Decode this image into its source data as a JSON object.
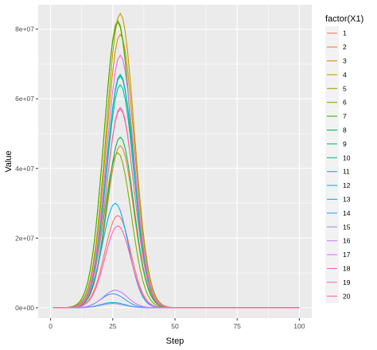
{
  "chart_data": {
    "type": "line",
    "xlabel": "Step",
    "ylabel": "Value",
    "xlim": [
      -5,
      105
    ],
    "ylim": [
      -3000000,
      87000000
    ],
    "x_ticks": [
      0,
      25,
      50,
      75,
      100
    ],
    "x_tick_labels": [
      "0",
      "25",
      "50",
      "75",
      "100"
    ],
    "y_ticks": [
      0,
      20000000,
      40000000,
      60000000,
      80000000
    ],
    "y_tick_labels": [
      "0e+00",
      "2e+07",
      "4e+07",
      "6e+07",
      "8e+07"
    ],
    "grid": true,
    "legend_title": "factor(X1)",
    "legend_position": "right",
    "step_range": [
      1,
      100
    ],
    "series": [
      {
        "name": "1",
        "color": "#F8766D",
        "peak": 26500000,
        "peak_step": 27,
        "width": 5.2
      },
      {
        "name": "2",
        "color": "#EA8331",
        "peak": 46500000,
        "peak_step": 28,
        "width": 5.4
      },
      {
        "name": "3",
        "color": "#D89000",
        "peak": 78500000,
        "peak_step": 28,
        "width": 5.6
      },
      {
        "name": "4",
        "color": "#C09B00",
        "peak": 84500000,
        "peak_step": 28,
        "width": 5.6
      },
      {
        "name": "5",
        "color": "#A3A500",
        "peak": 82500000,
        "peak_step": 27,
        "width": 5.5
      },
      {
        "name": "6",
        "color": "#7CAE00",
        "peak": 44500000,
        "peak_step": 27,
        "width": 5.4
      },
      {
        "name": "7",
        "color": "#39B600",
        "peak": 82000000,
        "peak_step": 27,
        "width": 5.5
      },
      {
        "name": "8",
        "color": "#00BB4E",
        "peak": 49000000,
        "peak_step": 28,
        "width": 5.4
      },
      {
        "name": "9",
        "color": "#00BF7D",
        "peak": 66500000,
        "peak_step": 28,
        "width": 5.5
      },
      {
        "name": "10",
        "color": "#00C1A3",
        "peak": 64000000,
        "peak_step": 28,
        "width": 5.5
      },
      {
        "name": "11",
        "color": "#00BFC4",
        "peak": 67000000,
        "peak_step": 28,
        "width": 5.5
      },
      {
        "name": "12",
        "color": "#00BAE0",
        "peak": 1500000,
        "peak_step": 25,
        "width": 4.8
      },
      {
        "name": "13",
        "color": "#00B0F6",
        "peak": 30000000,
        "peak_step": 26,
        "width": 5.2
      },
      {
        "name": "14",
        "color": "#35A2FF",
        "peak": 4000000,
        "peak_step": 25,
        "width": 4.8
      },
      {
        "name": "15",
        "color": "#9590FF",
        "peak": 1200000,
        "peak_step": 25,
        "width": 4.6
      },
      {
        "name": "16",
        "color": "#C77CFF",
        "peak": 5000000,
        "peak_step": 26,
        "width": 4.9
      },
      {
        "name": "17",
        "color": "#E76BF3",
        "peak": 72500000,
        "peak_step": 28,
        "width": 5.5
      },
      {
        "name": "18",
        "color": "#FA62DB",
        "peak": 57000000,
        "peak_step": 28,
        "width": 5.5
      },
      {
        "name": "19",
        "color": "#FF62BC",
        "peak": 23500000,
        "peak_step": 27,
        "width": 5.2
      },
      {
        "name": "20",
        "color": "#FF6C91",
        "peak": 57500000,
        "peak_step": 28,
        "width": 5.5
      }
    ]
  }
}
